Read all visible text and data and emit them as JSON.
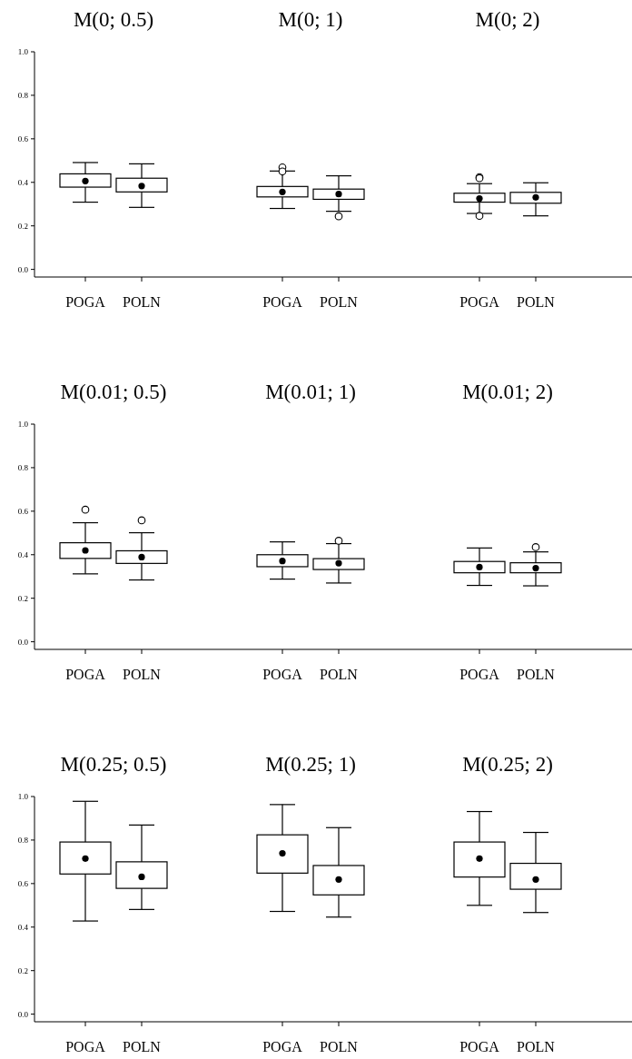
{
  "chart_data": [
    {
      "type": "box",
      "title": "M(0; 0.5)",
      "categories": [
        "POGA",
        "POLN"
      ],
      "ylim": [
        -0.035,
        1.0
      ],
      "yticks": [
        {
          "value": 0,
          "label": "0.0"
        },
        {
          "value": 0.2,
          "label": "0.2"
        },
        {
          "value": 0.4,
          "label": "0.4"
        },
        {
          "value": 0.6,
          "label": "0.6"
        },
        {
          "value": 0.8,
          "label": "0.8"
        },
        {
          "value": 1,
          "label": "1.0"
        }
      ],
      "boxes": [
        {
          "low": 0.309,
          "q1": 0.378,
          "median": 0.406,
          "q3": 0.439,
          "high": 0.491
        },
        {
          "low": 0.285,
          "q1": 0.356,
          "median": 0.383,
          "q3": 0.419,
          "high": 0.485
        }
      ]
    },
    {
      "type": "box",
      "title": "M(0; 1)",
      "categories": [
        "POGA",
        "POLN"
      ],
      "ylim": [
        -0.035,
        1.0
      ],
      "tick_labels": "x",
      "boxes": [
        {
          "low": 0.28,
          "q1": 0.333,
          "median": 0.356,
          "q3": 0.381,
          "high": 0.452,
          "outliers": [
            0.469,
            0.45
          ]
        },
        {
          "low": 0.267,
          "q1": 0.322,
          "median": 0.346,
          "q3": 0.369,
          "high": 0.43,
          "outliers": [
            0.244
          ]
        }
      ]
    },
    {
      "type": "box",
      "title": "M(0; 2)",
      "categories": [
        "POGA",
        "POLN"
      ],
      "ylim": [
        -0.035,
        1.0
      ],
      "tick_labels": "x",
      "boxes": [
        {
          "low": 0.257,
          "q1": 0.309,
          "median": 0.326,
          "q3": 0.35,
          "high": 0.394,
          "outliers": [
            0.424,
            0.419,
            0.246
          ]
        },
        {
          "low": 0.246,
          "q1": 0.304,
          "median": 0.331,
          "q3": 0.354,
          "high": 0.398
        }
      ]
    },
    {
      "type": "box",
      "title": "M(0.01; 0.5)",
      "categories": [
        "POGA",
        "POLN"
      ],
      "ylim": [
        -0.035,
        1.0
      ],
      "yticks": [
        {
          "value": 0,
          "label": "0.0"
        },
        {
          "value": 0.2,
          "label": "0.2"
        },
        {
          "value": 0.4,
          "label": "0.4"
        },
        {
          "value": 0.6,
          "label": "0.6"
        },
        {
          "value": 0.8,
          "label": "0.8"
        },
        {
          "value": 1,
          "label": "1.0"
        }
      ],
      "boxes": [
        {
          "low": 0.312,
          "q1": 0.383,
          "median": 0.42,
          "q3": 0.455,
          "high": 0.547,
          "outliers": [
            0.607
          ]
        },
        {
          "low": 0.284,
          "q1": 0.36,
          "median": 0.389,
          "q3": 0.418,
          "high": 0.501,
          "outliers": [
            0.558
          ]
        }
      ]
    },
    {
      "type": "box",
      "title": "M(0.01; 1)",
      "categories": [
        "POGA",
        "POLN"
      ],
      "ylim": [
        -0.035,
        1.0
      ],
      "tick_labels": "x",
      "boxes": [
        {
          "low": 0.288,
          "q1": 0.345,
          "median": 0.371,
          "q3": 0.4,
          "high": 0.459
        },
        {
          "low": 0.27,
          "q1": 0.332,
          "median": 0.361,
          "q3": 0.382,
          "high": 0.451,
          "outliers": [
            0.464
          ]
        }
      ]
    },
    {
      "type": "box",
      "title": "M(0.01; 2)",
      "categories": [
        "POGA",
        "POLN"
      ],
      "ylim": [
        -0.035,
        1.0
      ],
      "tick_labels": "x",
      "boxes": [
        {
          "low": 0.259,
          "q1": 0.317,
          "median": 0.343,
          "q3": 0.369,
          "high": 0.431
        },
        {
          "low": 0.257,
          "q1": 0.317,
          "median": 0.338,
          "q3": 0.363,
          "high": 0.413,
          "outliers": [
            0.435
          ]
        }
      ]
    },
    {
      "type": "box",
      "title": "M(0.25; 0.5)",
      "categories": [
        "POGA",
        "POLN"
      ],
      "ylim": [
        -0.035,
        1.0
      ],
      "yticks": [
        {
          "value": 0,
          "label": "0.0"
        },
        {
          "value": 0.2,
          "label": "0.2"
        },
        {
          "value": 0.4,
          "label": "0.4"
        },
        {
          "value": 0.6,
          "label": "0.6"
        },
        {
          "value": 0.8,
          "label": "0.8"
        },
        {
          "value": 1,
          "label": "1.0"
        }
      ],
      "boxes": [
        {
          "low": 0.428,
          "q1": 0.644,
          "median": 0.715,
          "q3": 0.791,
          "high": 0.978
        },
        {
          "low": 0.481,
          "q1": 0.578,
          "median": 0.631,
          "q3": 0.7,
          "high": 0.869
        }
      ]
    },
    {
      "type": "box",
      "title": "M(0.25; 1)",
      "categories": [
        "POGA",
        "POLN"
      ],
      "ylim": [
        -0.035,
        1.0
      ],
      "tick_labels": "x",
      "boxes": [
        {
          "low": 0.472,
          "q1": 0.648,
          "median": 0.739,
          "q3": 0.824,
          "high": 0.963
        },
        {
          "low": 0.446,
          "q1": 0.548,
          "median": 0.619,
          "q3": 0.683,
          "high": 0.857
        }
      ]
    },
    {
      "type": "box",
      "title": "M(0.25; 2)",
      "categories": [
        "POGA",
        "POLN"
      ],
      "ylim": [
        -0.035,
        1.0
      ],
      "tick_labels": "x",
      "boxes": [
        {
          "low": 0.5,
          "q1": 0.63,
          "median": 0.715,
          "q3": 0.791,
          "high": 0.931
        },
        {
          "low": 0.467,
          "q1": 0.574,
          "median": 0.619,
          "q3": 0.693,
          "high": 0.835
        }
      ]
    }
  ]
}
